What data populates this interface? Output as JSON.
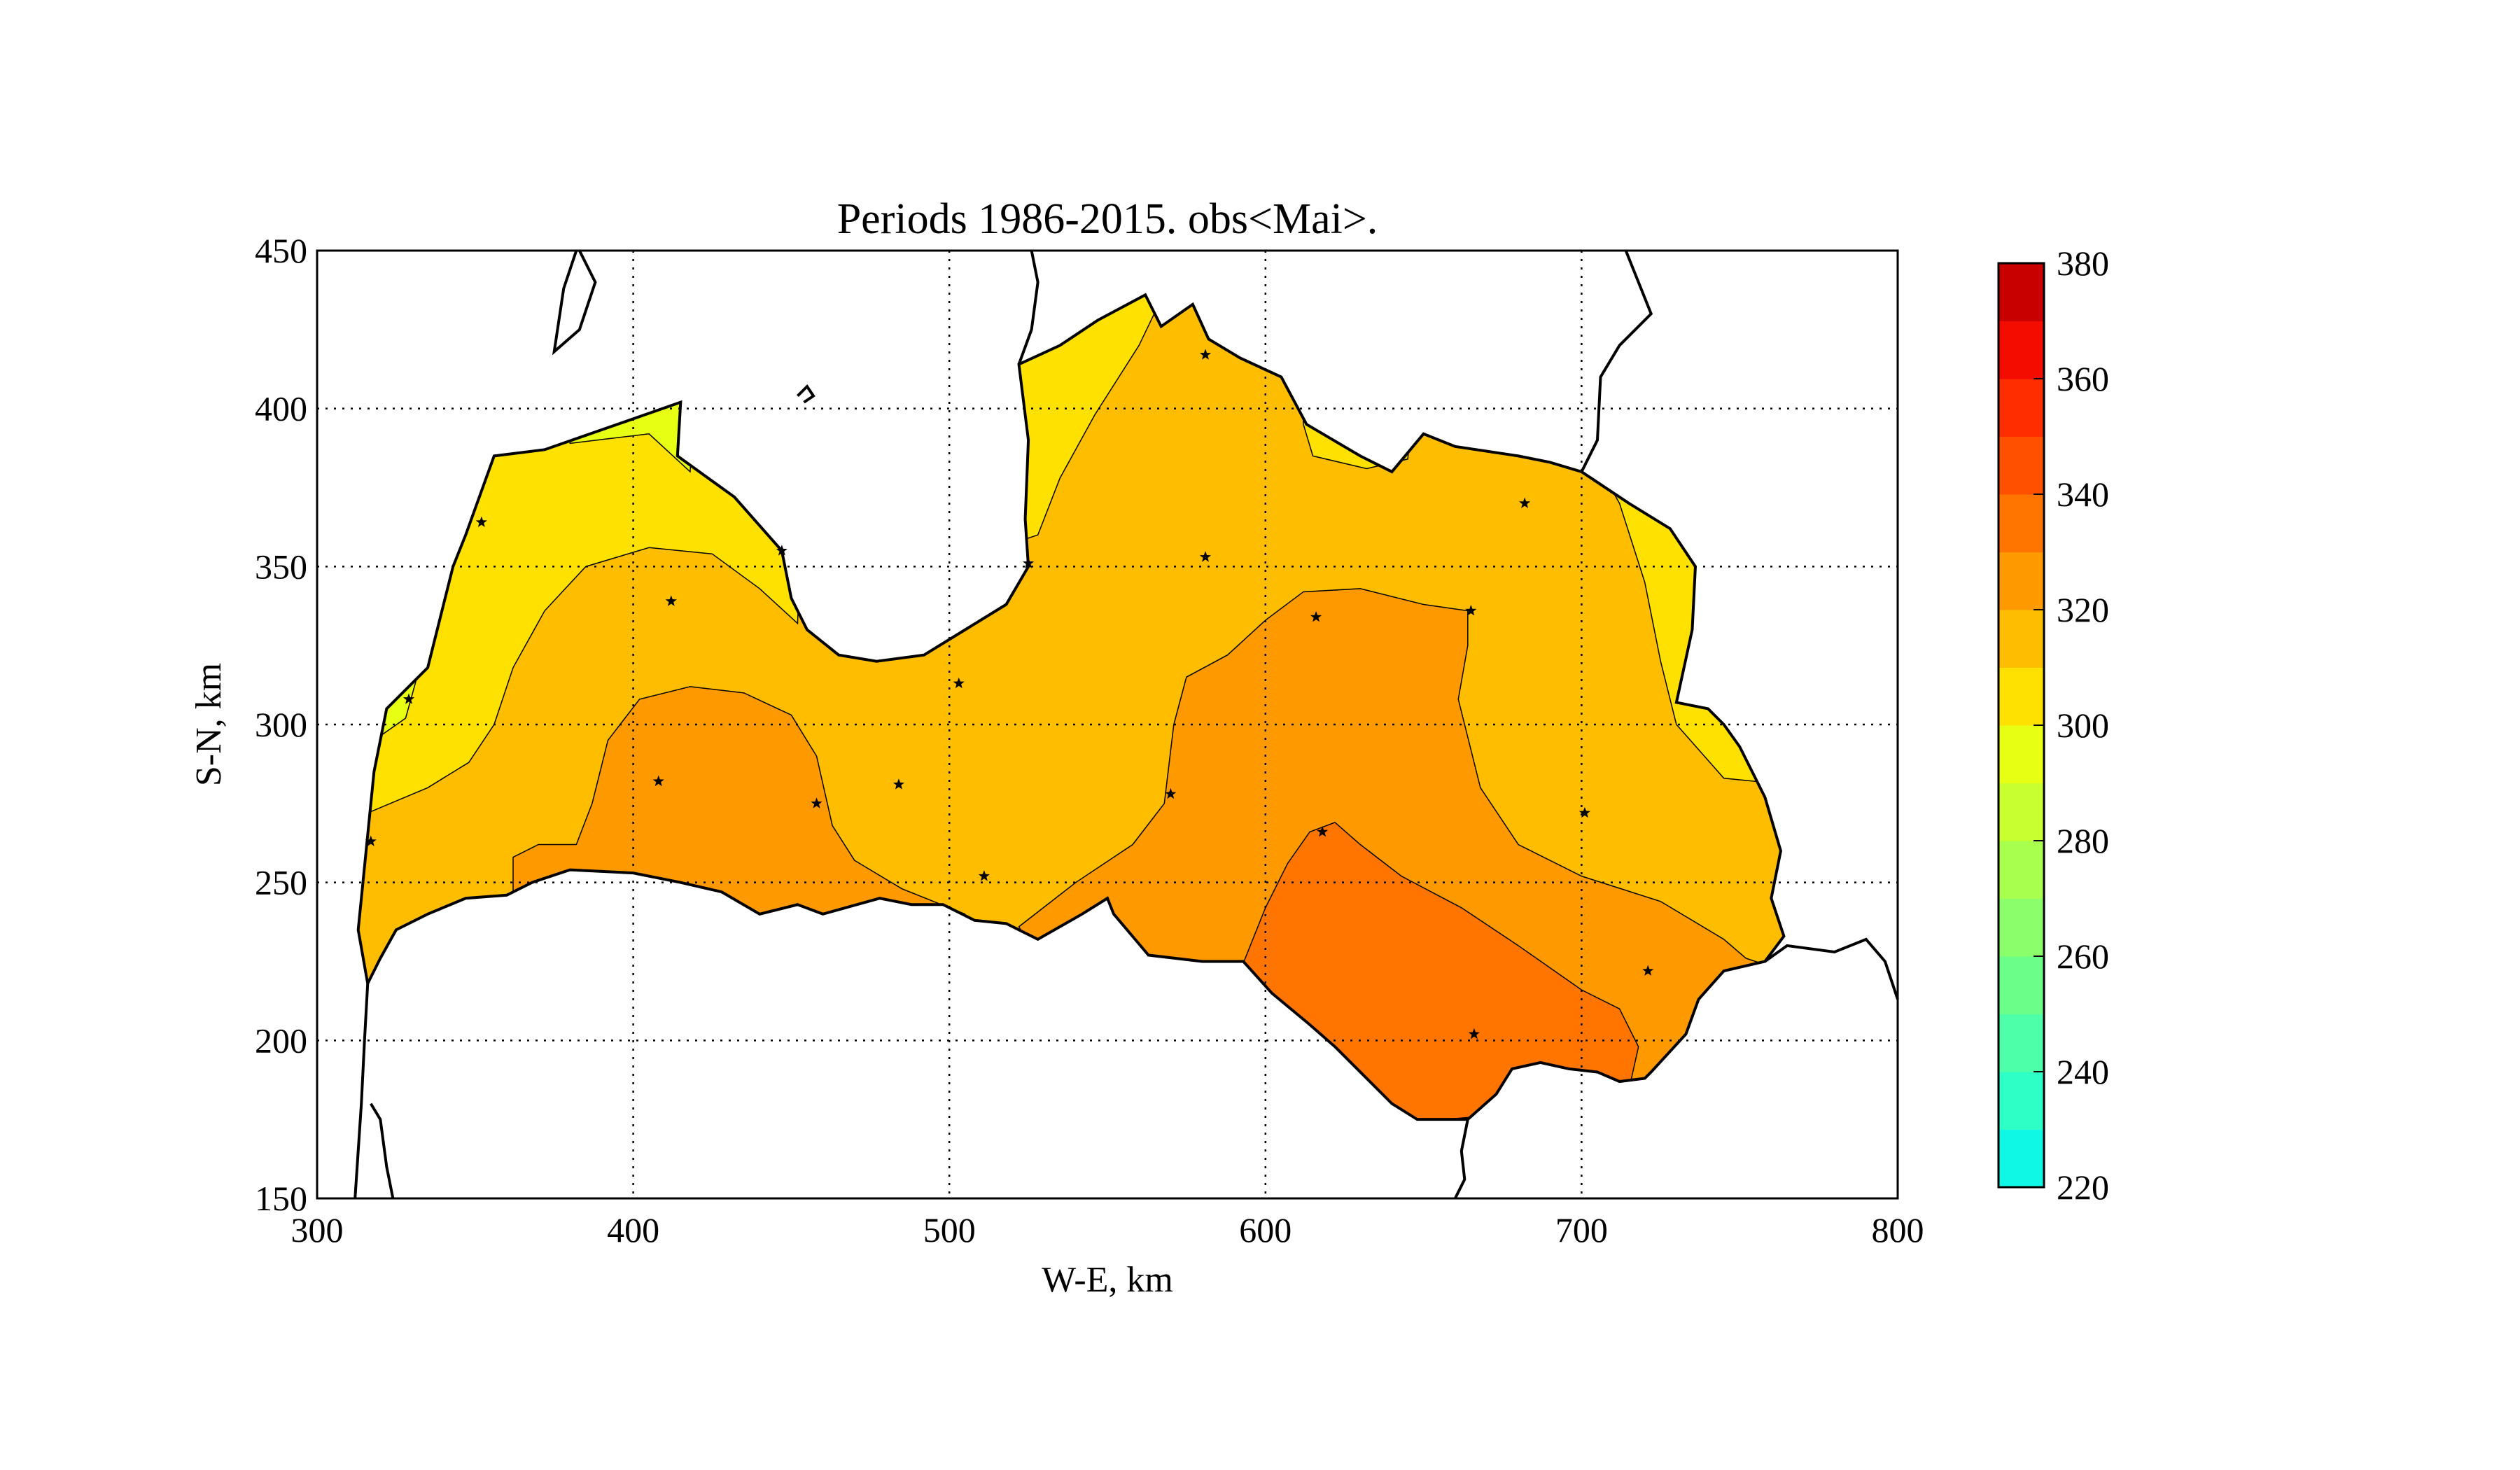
{
  "chart_data": {
    "type": "contour-map",
    "title": "Periods 1986-2015. obs<Mai>.",
    "xlabel": "W-E, km",
    "ylabel": "S-N, km",
    "xlim": [
      300,
      800
    ],
    "ylim": [
      150,
      450
    ],
    "xticks": [
      "300",
      "400",
      "500",
      "600",
      "700",
      "800"
    ],
    "yticks": [
      "150",
      "200",
      "250",
      "300",
      "350",
      "400",
      "450"
    ],
    "grid": true,
    "colorbar": {
      "range": [
        220,
        380
      ],
      "step": 10,
      "tick_labels": [
        "220",
        "240",
        "260",
        "280",
        "300",
        "320",
        "340",
        "360",
        "380"
      ],
      "colors": [
        "#0ff8e5",
        "#2effc6",
        "#4dffa8",
        "#6bff8a",
        "#8aff6b",
        "#a8ff4d",
        "#c8ff2e",
        "#e6ff12",
        "#ffe100",
        "#ffbd00",
        "#ff9900",
        "#ff7500",
        "#ff5100",
        "#ff2d00",
        "#f50c00",
        "#c80000"
      ]
    },
    "contour_levels_present": [
      290,
      300,
      310,
      320,
      330,
      340
    ],
    "stations": [
      {
        "x": 412,
        "y": 339
      },
      {
        "x": 408,
        "y": 282
      },
      {
        "x": 458,
        "y": 275
      },
      {
        "x": 484,
        "y": 281
      },
      {
        "x": 503,
        "y": 313
      },
      {
        "x": 511,
        "y": 252
      },
      {
        "x": 525,
        "y": 351
      },
      {
        "x": 581,
        "y": 417
      },
      {
        "x": 581,
        "y": 353
      },
      {
        "x": 570,
        "y": 278
      },
      {
        "x": 616,
        "y": 334
      },
      {
        "x": 665,
        "y": 336
      },
      {
        "x": 682,
        "y": 370
      },
      {
        "x": 618,
        "y": 266
      },
      {
        "x": 666,
        "y": 202
      },
      {
        "x": 701,
        "y": 272
      },
      {
        "x": 721,
        "y": 222
      },
      {
        "x": 317,
        "y": 263
      },
      {
        "x": 329,
        "y": 308
      },
      {
        "x": 352,
        "y": 364
      },
      {
        "x": 447,
        "y": 355
      }
    ]
  }
}
